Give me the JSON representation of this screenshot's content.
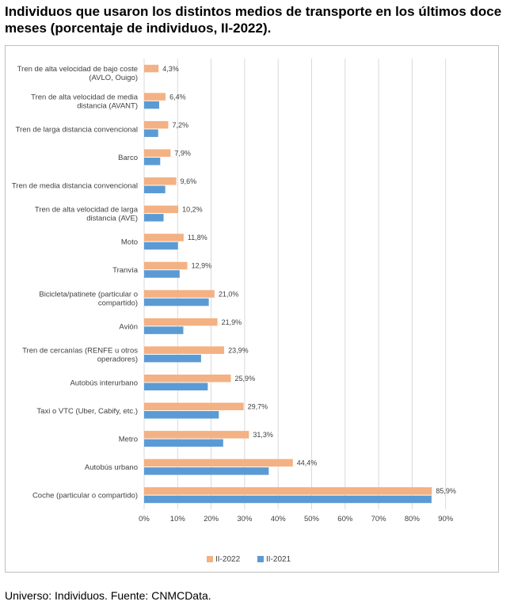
{
  "title": "Individuos que usaron los distintos medios de transporte en los últimos doce meses (porcentaje de individuos, II-2022).",
  "footer": "Universo: Individuos. Fuente: CNMCData.",
  "colors": {
    "series_2022": "#f4b183",
    "series_2021": "#5b9bd5",
    "grid": "#d9d9d9"
  },
  "chart_data": {
    "type": "bar",
    "orientation": "horizontal",
    "categories": [
      [
        "Tren de alta velocidad de bajo coste",
        "(AVLO, Ouigo)"
      ],
      [
        "Tren de alta velocidad de media",
        "distancia (AVANT)"
      ],
      [
        "Tren de larga distancia convencional"
      ],
      [
        "Barco"
      ],
      [
        "Tren de media distancia convencional"
      ],
      [
        "Tren de alta velocidad de larga",
        "distancia (AVE)"
      ],
      [
        "Moto"
      ],
      [
        "Tranvía"
      ],
      [
        "Bicicleta/patinete (particular o",
        "compartido)"
      ],
      [
        "Avión"
      ],
      [
        "Tren de cercanías (RENFE u otros",
        "operadores)"
      ],
      [
        "Autobús interurbano"
      ],
      [
        "Taxi o VTC (Uber, Cabify, etc.)"
      ],
      [
        "Metro"
      ],
      [
        "Autobús urbano"
      ],
      [
        "Coche (particular o compartido)"
      ]
    ],
    "series": [
      {
        "name": "II-2022",
        "values": [
          4.3,
          6.4,
          7.2,
          7.9,
          9.6,
          10.2,
          11.8,
          12.9,
          21.0,
          21.9,
          23.9,
          25.9,
          29.7,
          31.3,
          44.4,
          85.9
        ],
        "labels": [
          "4,3%",
          "6,4%",
          "7,2%",
          "7,9%",
          "9,6%",
          "10,2%",
          "11,8%",
          "12,9%",
          "21,0%",
          "21,9%",
          "23,9%",
          "25,9%",
          "29,7%",
          "31,3%",
          "44,4%",
          "85,9%"
        ]
      },
      {
        "name": "II-2021",
        "values": [
          0,
          4.5,
          4.2,
          4.8,
          6.3,
          5.8,
          10.1,
          10.6,
          19.3,
          11.7,
          17.0,
          19.0,
          22.3,
          23.6,
          37.2,
          85.8
        ]
      }
    ],
    "x_ticks": [
      "0%",
      "10%",
      "20%",
      "30%",
      "40%",
      "50%",
      "60%",
      "70%",
      "80%",
      "90%"
    ],
    "xlim": [
      0,
      90
    ],
    "grid": "vertical",
    "legend": "bottom"
  }
}
